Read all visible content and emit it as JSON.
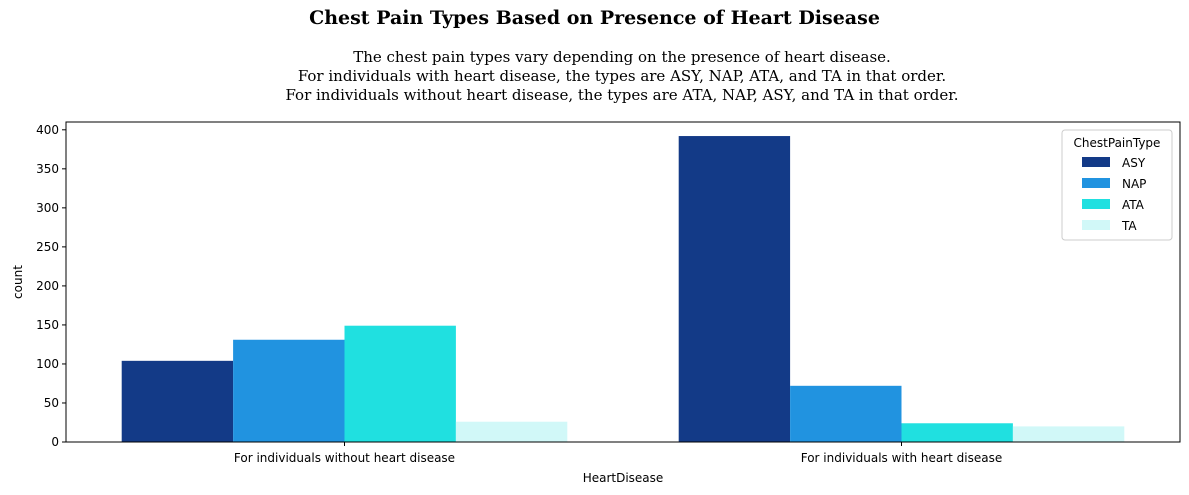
{
  "chart_data": {
    "type": "bar",
    "title": "Chest Pain Types Based on Presence of Heart Disease",
    "subtitle": [
      "The chest pain types vary depending on the presence of heart disease.",
      "For individuals with heart disease, the types are ASY, NAP, ATA, and TA in that order.",
      "For individuals without heart disease, the types are ATA, NAP, ASY, and TA in that order."
    ],
    "xlabel": "HeartDisease",
    "ylabel": "count",
    "categories": [
      "For individuals without heart disease",
      "For individuals with heart disease"
    ],
    "series": [
      {
        "name": "ASY",
        "color": "#133a87",
        "values": [
          104,
          392
        ]
      },
      {
        "name": "NAP",
        "color": "#2193e0",
        "values": [
          131,
          72
        ]
      },
      {
        "name": "ATA",
        "color": "#20e0e0",
        "values": [
          149,
          24
        ]
      },
      {
        "name": "TA",
        "color": "#d1f8f8",
        "values": [
          26,
          20
        ]
      }
    ],
    "ylim": [
      0,
      410
    ],
    "yticks": [
      0,
      50,
      100,
      150,
      200,
      250,
      300,
      350,
      400
    ],
    "legend": {
      "title": "ChestPainType",
      "placement": "top-right"
    },
    "grid": false
  }
}
